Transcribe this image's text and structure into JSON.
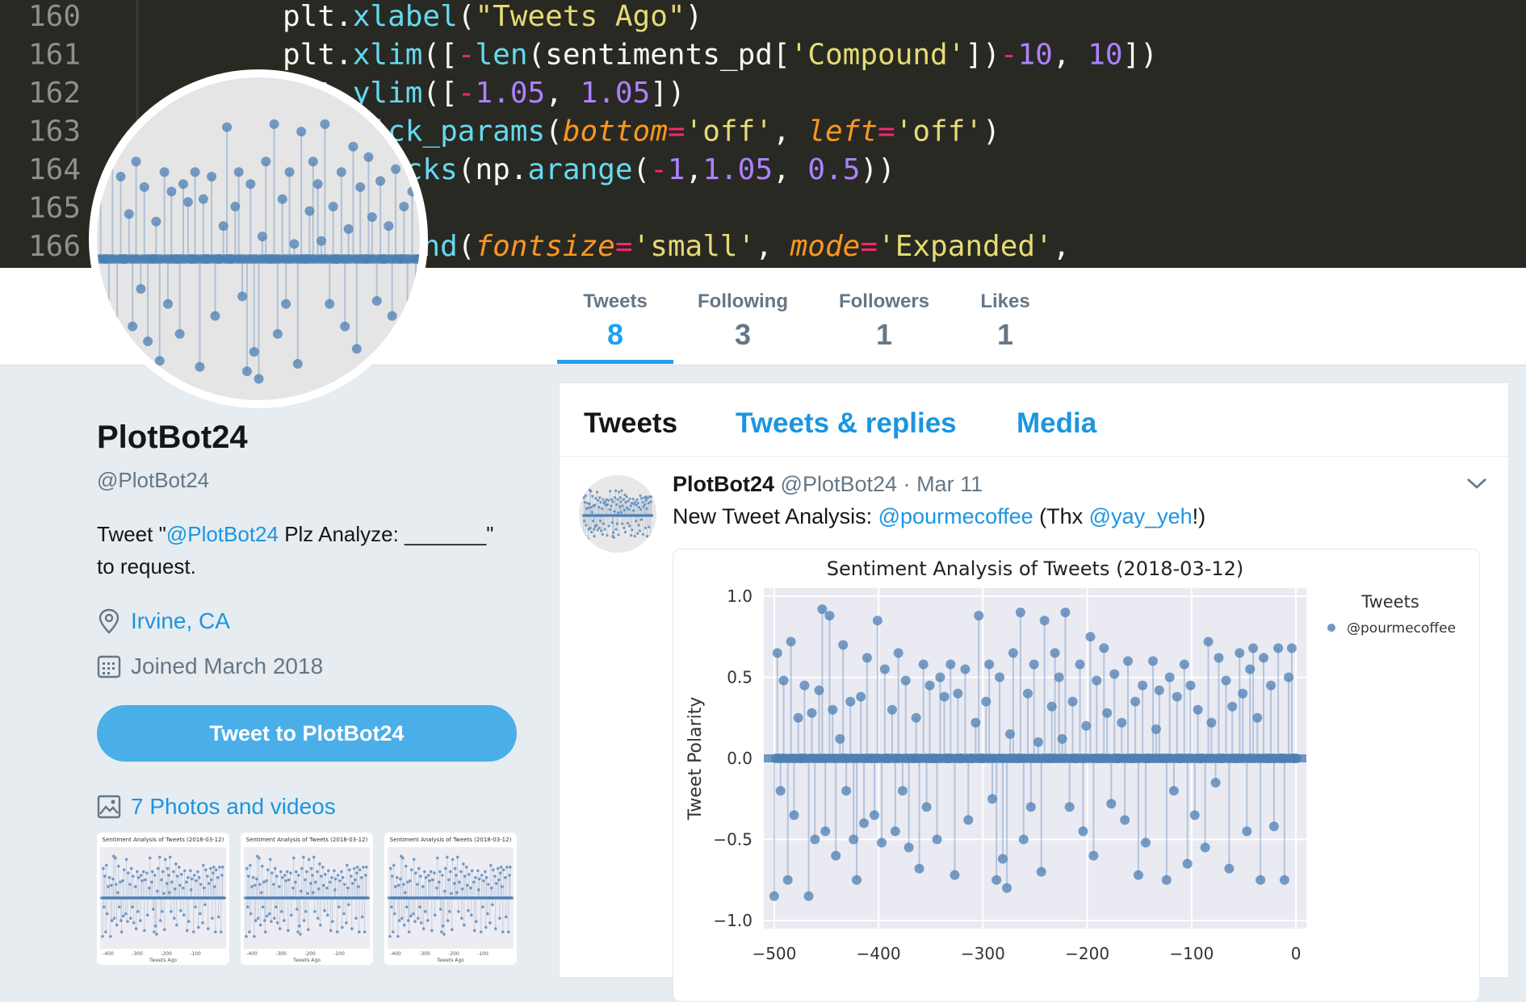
{
  "banner": {
    "code_lines": [
      {
        "num": "160",
        "text": "plt.xlabel(\"Tweets Ago\")"
      },
      {
        "num": "161",
        "text": "plt.xlim([-len(sentiments_pd['Compound'])-10, 10])"
      },
      {
        "num": "162",
        "text": "plt.ylim([-1.05, 1.05])"
      },
      {
        "num": "163",
        "text": "plt.tick_params(bottom='off', left='off')"
      },
      {
        "num": "164",
        "text": "plt.yticks(np.arange(-1,1.05, 0.5))"
      },
      {
        "num": "165",
        "text": ""
      },
      {
        "num": "166",
        "text": "plt.legend(fontsize='small', mode='Expanded',"
      }
    ]
  },
  "stats": [
    {
      "label": "Tweets",
      "value": "8"
    },
    {
      "label": "Following",
      "value": "3"
    },
    {
      "label": "Followers",
      "value": "1"
    },
    {
      "label": "Likes",
      "value": "1"
    }
  ],
  "profile": {
    "name": "PlotBot24",
    "handle": "@PlotBot24",
    "bio_prefix": "Tweet \"",
    "bio_mention": "@PlotBot24",
    "bio_suffix": " Plz Analyze: _______\" to request.",
    "location": "Irvine, CA",
    "joined": "Joined March 2018",
    "tweet_button": "Tweet to PlotBot24",
    "photos_link": "7 Photos and videos",
    "thumb_title": "Sentiment Analysis of Tweets (2018-03-12)",
    "thumb_xlabel": "Tweets Ago",
    "thumb_ticks": [
      "-400",
      "-300",
      "-200",
      "-100"
    ]
  },
  "tabs": [
    {
      "label": "Tweets",
      "active": true
    },
    {
      "label": "Tweets & replies",
      "active": false
    },
    {
      "label": "Media",
      "active": false
    }
  ],
  "tweet": {
    "name": "PlotBot24",
    "handle": "@PlotBot24",
    "dot": "·",
    "date": "Mar 11",
    "text_prefix": "New Tweet Analysis: ",
    "mention1": "@pourmecoffee",
    "text_middle": " (Thx ",
    "mention2": "@yay_yeh",
    "text_suffix": "!)"
  },
  "chart_data": {
    "type": "scatter",
    "title": "Sentiment Analysis of Tweets (2018-03-12)",
    "ylabel": "Tweet Polarity",
    "xlabel": "Tweets Ago",
    "xlim": [
      -510,
      10
    ],
    "ylim": [
      -1.05,
      1.05
    ],
    "xticks": [
      -500,
      -400,
      -300,
      -200,
      -100,
      0
    ],
    "yticks": [
      -1.0,
      -0.5,
      0.0,
      0.5,
      1.0
    ],
    "ytick_labels": [
      "−1.0",
      "−0.5",
      "0.0",
      "0.5",
      "1.0"
    ],
    "xtick_labels": [
      "−500",
      "−400",
      "−300",
      "−200",
      "−100",
      "0"
    ],
    "grid": true,
    "legend": {
      "title": "Tweets",
      "placement": "right-outside"
    },
    "series": [
      {
        "name": "@pourmecoffee",
        "color": "#4c7fb4",
        "x": [
          -500,
          -497,
          -494,
          -491,
          -487,
          -484,
          -481,
          -477,
          -474,
          -471,
          -467,
          -464,
          -461,
          -457,
          -454,
          -451,
          -447,
          -444,
          -441,
          -437,
          -434,
          -431,
          -427,
          -424,
          -421,
          -417,
          -414,
          -411,
          -407,
          -404,
          -401,
          -397,
          -394,
          -391,
          -387,
          -384,
          -381,
          -377,
          -374,
          -371,
          -367,
          -364,
          -361,
          -357,
          -354,
          -351,
          -347,
          -344,
          -341,
          -337,
          -334,
          -331,
          -327,
          -324,
          -321,
          -317,
          -314,
          -311,
          -307,
          -304,
          -301,
          -297,
          -294,
          -291,
          -287,
          -284,
          -281,
          -277,
          -274,
          -271,
          -267,
          -264,
          -261,
          -257,
          -254,
          -251,
          -247,
          -244,
          -241,
          -237,
          -234,
          -231,
          -227,
          -224,
          -221,
          -217,
          -214,
          -211,
          -207,
          -204,
          -201,
          -197,
          -194,
          -191,
          -187,
          -184,
          -181,
          -177,
          -174,
          -171,
          -167,
          -164,
          -161,
          -157,
          -154,
          -151,
          -147,
          -144,
          -141,
          -137,
          -134,
          -131,
          -127,
          -124,
          -121,
          -117,
          -114,
          -111,
          -107,
          -104,
          -101,
          -97,
          -94,
          -91,
          -87,
          -84,
          -81,
          -77,
          -74,
          -71,
          -67,
          -64,
          -61,
          -57,
          -54,
          -51,
          -47,
          -44,
          -41,
          -37,
          -34,
          -31,
          -27,
          -24,
          -21,
          -17,
          -14,
          -11,
          -7,
          -4,
          -1
        ],
        "y": [
          -0.85,
          0.65,
          -0.2,
          0.48,
          -0.75,
          0.72,
          -0.35,
          0.25,
          0.0,
          0.45,
          -0.85,
          0.28,
          -0.5,
          0.42,
          0.92,
          -0.45,
          0.88,
          0.3,
          -0.6,
          0.12,
          0.7,
          -0.2,
          0.35,
          -0.5,
          -0.75,
          0.38,
          -0.4,
          0.62,
          0.0,
          -0.35,
          0.85,
          -0.52,
          0.55,
          0.0,
          0.3,
          -0.45,
          0.65,
          -0.2,
          0.48,
          -0.55,
          0.0,
          0.25,
          -0.68,
          0.58,
          -0.3,
          0.45,
          0.0,
          -0.5,
          0.5,
          0.38,
          0.0,
          0.58,
          -0.72,
          0.4,
          0.0,
          0.55,
          -0.38,
          0.0,
          0.22,
          0.88,
          0.0,
          0.35,
          0.58,
          -0.25,
          -0.75,
          0.5,
          -0.62,
          -0.8,
          0.15,
          0.65,
          0.0,
          0.9,
          -0.5,
          0.4,
          -0.3,
          0.58,
          0.1,
          -0.7,
          0.85,
          0.0,
          0.32,
          0.65,
          0.5,
          0.12,
          0.9,
          -0.3,
          0.35,
          0.0,
          0.58,
          -0.45,
          0.2,
          0.75,
          -0.6,
          0.48,
          0.0,
          0.68,
          0.28,
          -0.28,
          0.52,
          0.0,
          0.22,
          -0.38,
          0.6,
          0.0,
          0.35,
          -0.72,
          0.45,
          -0.52,
          0.0,
          0.6,
          0.18,
          0.42,
          0.0,
          -0.75,
          0.5,
          -0.2,
          0.38,
          0.0,
          0.58,
          -0.65,
          0.45,
          -0.35,
          0.3,
          0.0,
          -0.55,
          0.72,
          0.22,
          -0.15,
          0.62,
          0.0,
          0.48,
          -0.68,
          0.32,
          0.0,
          0.65,
          0.4,
          -0.45,
          0.55,
          0.68,
          0.25,
          -0.75,
          0.62,
          0.0,
          0.45,
          -0.42,
          0.68,
          0.0,
          -0.75,
          0.5,
          0.68,
          0.0
        ]
      }
    ]
  }
}
